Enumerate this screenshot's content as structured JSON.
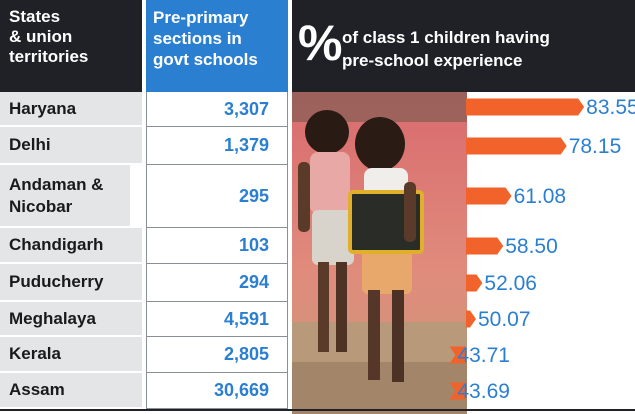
{
  "header": {
    "col1_lines": [
      "States",
      "& union",
      "territories"
    ],
    "col2_lines": [
      "Pre-primary",
      "sections in",
      "govt schools"
    ],
    "col3_symbol": "%",
    "col3_line1": "of class 1 children having",
    "col3_line2": "pre-school experience"
  },
  "rows": [
    {
      "state": "Haryana",
      "sections": "3,307"
    },
    {
      "state": "Delhi",
      "sections": "1,379"
    },
    {
      "state": "Andaman & Nicobar",
      "sections": "295"
    },
    {
      "state": "Chandigarh",
      "sections": "103"
    },
    {
      "state": "Puducherry",
      "sections": "294"
    },
    {
      "state": "Meghalaya",
      "sections": "4,591"
    },
    {
      "state": "Kerala",
      "sections": "2,805"
    },
    {
      "state": "Assam",
      "sections": "30,669"
    }
  ],
  "colors": {
    "header_dark": "#1f2127",
    "header_blue": "#2b7fd1",
    "bar": "#f2632b",
    "value_text": "#2b7fd1",
    "state_cell": "#e4e5e7"
  },
  "chart_data": {
    "type": "bar",
    "orientation": "horizontal",
    "categories": [
      "Haryana",
      "Delhi",
      "Andaman & Nicobar",
      "Chandigarh",
      "Puducherry",
      "Meghalaya",
      "Kerala",
      "Assam"
    ],
    "series": [
      {
        "values": [
          83.55,
          78.15,
          61.08,
          58.5,
          52.06,
          50.07,
          43.71,
          43.69
        ]
      }
    ],
    "value_labels": [
      "83.55",
      "78.15",
      "61.08",
      "58.50",
      "52.06",
      "50.07",
      "43.71",
      "43.69"
    ],
    "title": "",
    "xlabel": "",
    "ylabel": "",
    "grid": false
  }
}
